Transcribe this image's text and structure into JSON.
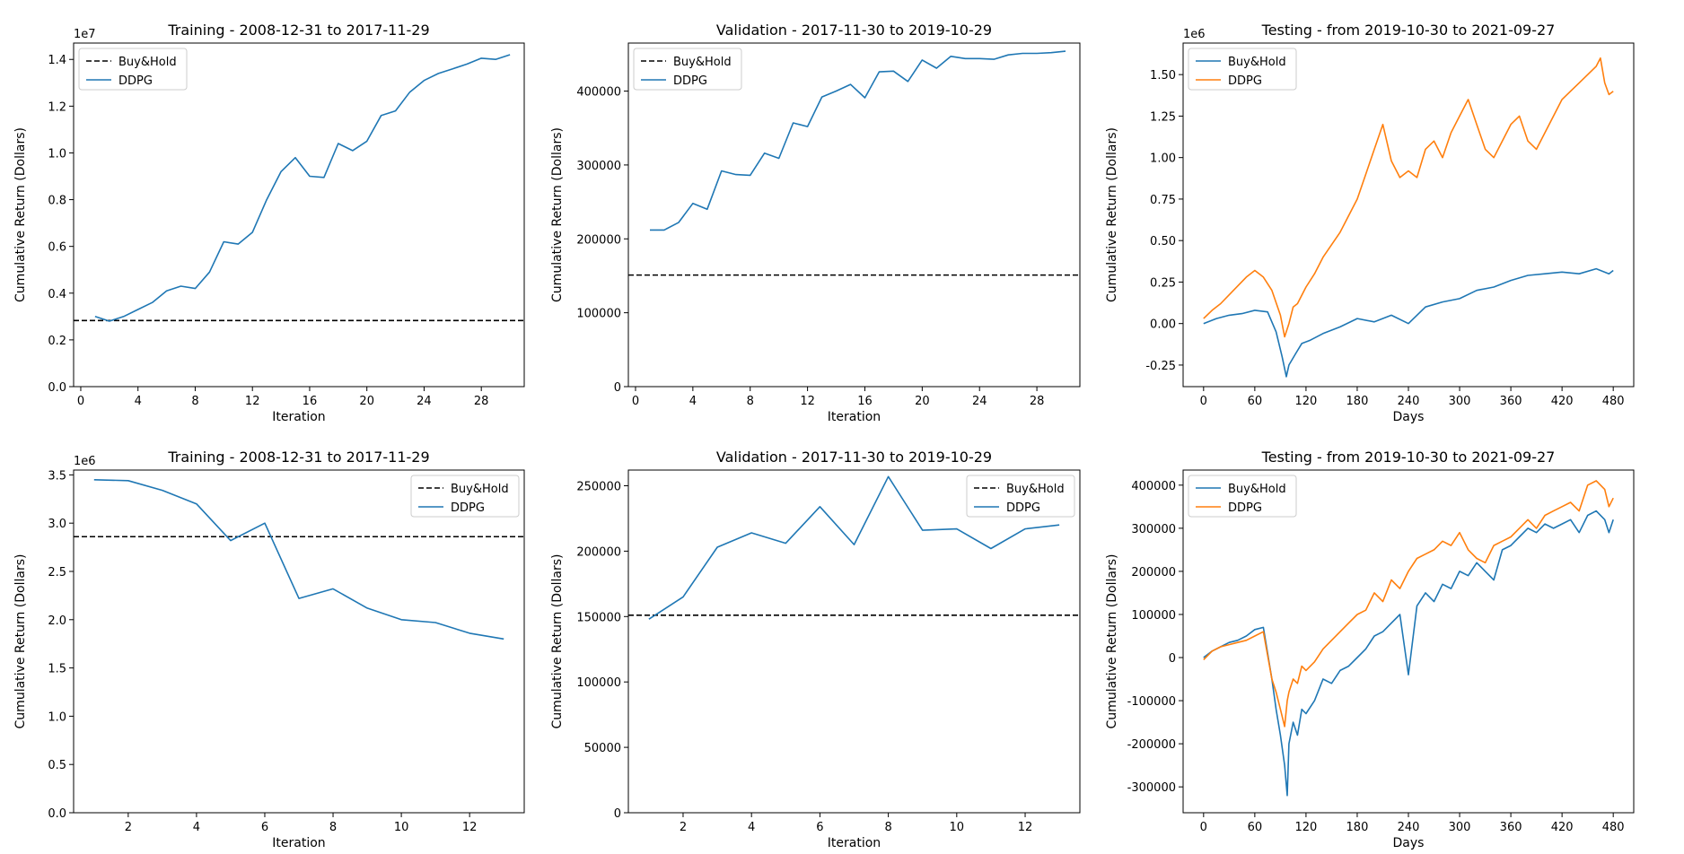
{
  "chart_data": [
    {
      "type": "line",
      "title": "Training - 2008-12-31 to 2017-11-29",
      "xlabel": "Iteration",
      "ylabel": "Cumulative Return (Dollars)",
      "y_offset_label": "1e7",
      "xlim": [
        -0.5,
        31
      ],
      "ylim": [
        0,
        1.47
      ],
      "xticks": [
        0,
        4,
        8,
        12,
        16,
        20,
        24,
        28
      ],
      "yticks": [
        0.0,
        0.2,
        0.4,
        0.6,
        0.8,
        1.0,
        1.2,
        1.4
      ],
      "ytick_decimals": 1,
      "legend_position": "upper left",
      "legend": [
        {
          "label": "Buy&Hold",
          "style": "dashed",
          "color": "#000000"
        },
        {
          "label": "DDPG",
          "style": "solid",
          "color": "#1f77b4"
        }
      ],
      "hlines": [
        {
          "series": "Buy&Hold",
          "y": 0.283,
          "color": "#000000"
        }
      ],
      "series": [
        {
          "name": "DDPG",
          "color": "#1f77b4",
          "x": [
            1,
            2,
            3,
            4,
            5,
            6,
            7,
            8,
            9,
            10,
            11,
            12,
            13,
            14,
            15,
            16,
            17,
            18,
            19,
            20,
            21,
            22,
            23,
            24,
            25,
            26,
            27,
            28,
            29,
            30
          ],
          "y": [
            0.3,
            0.28,
            0.3,
            0.33,
            0.36,
            0.41,
            0.43,
            0.42,
            0.49,
            0.62,
            0.61,
            0.66,
            0.8,
            0.92,
            0.98,
            0.9,
            0.895,
            1.04,
            1.01,
            1.05,
            1.16,
            1.18,
            1.26,
            1.31,
            1.34,
            1.36,
            1.38,
            1.405,
            1.4,
            1.42
          ]
        }
      ]
    },
    {
      "type": "line",
      "title": "Validation - 2017-11-30 to 2019-10-29",
      "xlabel": "Iteration",
      "ylabel": "Cumulative Return (Dollars)",
      "y_offset_label": "",
      "xlim": [
        -0.5,
        31
      ],
      "ylim": [
        0,
        465000
      ],
      "xticks": [
        0,
        4,
        8,
        12,
        16,
        20,
        24,
        28
      ],
      "yticks": [
        0,
        100000,
        200000,
        300000,
        400000
      ],
      "ytick_decimals": 0,
      "legend_position": "upper left",
      "legend": [
        {
          "label": "Buy&Hold",
          "style": "dashed",
          "color": "#000000"
        },
        {
          "label": "DDPG",
          "style": "solid",
          "color": "#1f77b4"
        }
      ],
      "hlines": [
        {
          "series": "Buy&Hold",
          "y": 151000,
          "color": "#000000"
        }
      ],
      "series": [
        {
          "name": "DDPG",
          "color": "#1f77b4",
          "x": [
            1,
            2,
            3,
            4,
            5,
            6,
            7,
            8,
            9,
            10,
            11,
            12,
            13,
            14,
            15,
            16,
            17,
            18,
            19,
            20,
            21,
            22,
            23,
            24,
            25,
            26,
            27,
            28,
            29,
            30
          ],
          "y": [
            212000,
            212000,
            222000,
            248000,
            240000,
            292000,
            287000,
            286000,
            316000,
            309000,
            357000,
            352000,
            392000,
            400000,
            409000,
            391000,
            426000,
            427000,
            413000,
            442000,
            431000,
            447000,
            444000,
            444000,
            443000,
            449000,
            451000,
            451000,
            452000,
            454000
          ]
        }
      ]
    },
    {
      "type": "line",
      "title": "Testing - from 2019-10-30 to 2021-09-27",
      "xlabel": "Days",
      "ylabel": "Cumulative Return (Dollars)",
      "y_offset_label": "1e6",
      "xlim": [
        -24,
        504
      ],
      "ylim": [
        -0.38,
        1.69
      ],
      "xticks": [
        0,
        60,
        120,
        180,
        240,
        300,
        360,
        420,
        480
      ],
      "yticks": [
        -0.25,
        0.0,
        0.25,
        0.5,
        0.75,
        1.0,
        1.25,
        1.5
      ],
      "ytick_decimals": 2,
      "legend_position": "upper left",
      "legend": [
        {
          "label": "Buy&Hold",
          "style": "solid",
          "color": "#1f77b4"
        },
        {
          "label": "DDPG",
          "style": "solid",
          "color": "#ff7f0e"
        }
      ],
      "hlines": [],
      "series": [
        {
          "name": "Buy&Hold",
          "color": "#1f77b4",
          "x": [
            0,
            15,
            30,
            45,
            60,
            75,
            85,
            92,
            97,
            100,
            108,
            115,
            125,
            140,
            160,
            180,
            200,
            220,
            240,
            250,
            260,
            280,
            300,
            320,
            340,
            360,
            380,
            400,
            420,
            440,
            460,
            475,
            480
          ],
          "y": [
            0.0,
            0.03,
            0.05,
            0.06,
            0.08,
            0.07,
            -0.05,
            -0.2,
            -0.32,
            -0.25,
            -0.18,
            -0.12,
            -0.1,
            -0.06,
            -0.02,
            0.03,
            0.01,
            0.05,
            0.0,
            0.05,
            0.1,
            0.13,
            0.15,
            0.2,
            0.22,
            0.26,
            0.29,
            0.3,
            0.31,
            0.3,
            0.33,
            0.3,
            0.32
          ]
        },
        {
          "name": "DDPG",
          "color": "#ff7f0e",
          "x": [
            0,
            10,
            20,
            35,
            50,
            60,
            70,
            80,
            90,
            95,
            100,
            105,
            110,
            120,
            130,
            140,
            160,
            180,
            190,
            200,
            210,
            220,
            230,
            240,
            250,
            260,
            270,
            280,
            290,
            300,
            310,
            320,
            330,
            340,
            350,
            360,
            370,
            380,
            390,
            400,
            410,
            420,
            430,
            440,
            450,
            460,
            465,
            470,
            475,
            480
          ],
          "y": [
            0.03,
            0.08,
            0.12,
            0.2,
            0.28,
            0.32,
            0.28,
            0.2,
            0.05,
            -0.08,
            0.0,
            0.1,
            0.12,
            0.22,
            0.3,
            0.4,
            0.55,
            0.75,
            0.9,
            1.05,
            1.2,
            0.98,
            0.88,
            0.92,
            0.88,
            1.05,
            1.1,
            1.0,
            1.15,
            1.25,
            1.35,
            1.2,
            1.05,
            1.0,
            1.1,
            1.2,
            1.25,
            1.1,
            1.05,
            1.15,
            1.25,
            1.35,
            1.4,
            1.45,
            1.5,
            1.55,
            1.6,
            1.45,
            1.38,
            1.4
          ]
        }
      ]
    },
    {
      "type": "line",
      "title": "Training - 2008-12-31 to 2017-11-29",
      "xlabel": "Iteration",
      "ylabel": "Cumulative Return (Dollars)",
      "y_offset_label": "1e6",
      "xlim": [
        0.4,
        13.6
      ],
      "ylim": [
        0,
        3.55
      ],
      "xticks": [
        2,
        4,
        6,
        8,
        10,
        12
      ],
      "yticks": [
        0.0,
        0.5,
        1.0,
        1.5,
        2.0,
        2.5,
        3.0,
        3.5
      ],
      "ytick_decimals": 1,
      "legend_position": "upper right",
      "legend": [
        {
          "label": "Buy&Hold",
          "style": "dashed",
          "color": "#000000"
        },
        {
          "label": "DDPG",
          "style": "solid",
          "color": "#1f77b4"
        }
      ],
      "hlines": [
        {
          "series": "Buy&Hold",
          "y": 2.86,
          "color": "#000000"
        }
      ],
      "series": [
        {
          "name": "DDPG",
          "color": "#1f77b4",
          "x": [
            1,
            2,
            3,
            4,
            5,
            6,
            7,
            8,
            9,
            10,
            11,
            12,
            13
          ],
          "y": [
            3.45,
            3.44,
            3.34,
            3.2,
            2.82,
            3.0,
            2.22,
            2.32,
            2.12,
            2.0,
            1.97,
            1.86,
            1.8
          ]
        }
      ]
    },
    {
      "type": "line",
      "title": "Validation - 2017-11-30 to 2019-10-29",
      "xlabel": "Iteration",
      "ylabel": "Cumulative Return (Dollars)",
      "y_offset_label": "",
      "xlim": [
        0.4,
        13.6
      ],
      "ylim": [
        0,
        262000
      ],
      "xticks": [
        2,
        4,
        6,
        8,
        10,
        12
      ],
      "yticks": [
        0,
        50000,
        100000,
        150000,
        200000,
        250000
      ],
      "ytick_decimals": 0,
      "legend_position": "upper right",
      "legend": [
        {
          "label": "Buy&Hold",
          "style": "dashed",
          "color": "#000000"
        },
        {
          "label": "DDPG",
          "style": "solid",
          "color": "#1f77b4"
        }
      ],
      "hlines": [
        {
          "series": "Buy&Hold",
          "y": 151000,
          "color": "#000000"
        }
      ],
      "series": [
        {
          "name": "DDPG",
          "color": "#1f77b4",
          "x": [
            1,
            2,
            3,
            4,
            5,
            6,
            7,
            8,
            9,
            10,
            11,
            12,
            13
          ],
          "y": [
            148000,
            165000,
            203000,
            214000,
            206000,
            234000,
            205000,
            257000,
            216000,
            217000,
            202000,
            217000,
            220000
          ]
        }
      ]
    },
    {
      "type": "line",
      "title": "Testing - from 2019-10-30 to 2021-09-27",
      "xlabel": "Days",
      "ylabel": "Cumulative Return (Dollars)",
      "y_offset_label": "",
      "xlim": [
        -24,
        504
      ],
      "ylim": [
        -360000,
        435000
      ],
      "xticks": [
        0,
        60,
        120,
        180,
        240,
        300,
        360,
        420,
        480
      ],
      "yticks": [
        -300000,
        -200000,
        -100000,
        0,
        100000,
        200000,
        300000,
        400000
      ],
      "ytick_decimals": 0,
      "legend_position": "upper left",
      "legend": [
        {
          "label": "Buy&Hold",
          "style": "solid",
          "color": "#1f77b4"
        },
        {
          "label": "DDPG",
          "style": "solid",
          "color": "#ff7f0e"
        }
      ],
      "hlines": [],
      "series": [
        {
          "name": "Buy&Hold",
          "color": "#1f77b4",
          "x": [
            0,
            10,
            20,
            30,
            40,
            50,
            60,
            70,
            80,
            85,
            90,
            95,
            98,
            100,
            105,
            110,
            115,
            120,
            130,
            140,
            150,
            160,
            170,
            180,
            190,
            200,
            210,
            220,
            230,
            240,
            250,
            260,
            270,
            280,
            290,
            300,
            310,
            320,
            330,
            340,
            350,
            360,
            370,
            380,
            390,
            400,
            410,
            420,
            430,
            440,
            450,
            460,
            470,
            475,
            480
          ],
          "y": [
            0,
            15000,
            25000,
            35000,
            40000,
            50000,
            65000,
            70000,
            -50000,
            -120000,
            -180000,
            -250000,
            -320000,
            -200000,
            -150000,
            -180000,
            -120000,
            -130000,
            -100000,
            -50000,
            -60000,
            -30000,
            -20000,
            0,
            20000,
            50000,
            60000,
            80000,
            100000,
            -40000,
            120000,
            150000,
            130000,
            170000,
            160000,
            200000,
            190000,
            220000,
            200000,
            180000,
            250000,
            260000,
            280000,
            300000,
            290000,
            310000,
            300000,
            310000,
            320000,
            290000,
            330000,
            340000,
            320000,
            290000,
            320000
          ]
        },
        {
          "name": "DDPG",
          "color": "#ff7f0e",
          "x": [
            0,
            10,
            20,
            30,
            40,
            50,
            60,
            70,
            80,
            85,
            90,
            95,
            98,
            100,
            105,
            110,
            115,
            120,
            130,
            140,
            150,
            160,
            170,
            180,
            190,
            200,
            210,
            220,
            230,
            240,
            250,
            260,
            270,
            280,
            290,
            300,
            310,
            320,
            330,
            340,
            350,
            360,
            370,
            380,
            390,
            400,
            410,
            420,
            430,
            440,
            450,
            460,
            470,
            475,
            480
          ],
          "y": [
            -5000,
            15000,
            25000,
            30000,
            35000,
            40000,
            50000,
            60000,
            -50000,
            -80000,
            -120000,
            -160000,
            -100000,
            -80000,
            -50000,
            -60000,
            -20000,
            -30000,
            -10000,
            20000,
            40000,
            60000,
            80000,
            100000,
            110000,
            150000,
            130000,
            180000,
            160000,
            200000,
            230000,
            240000,
            250000,
            270000,
            260000,
            290000,
            250000,
            230000,
            220000,
            260000,
            270000,
            280000,
            300000,
            320000,
            300000,
            330000,
            340000,
            350000,
            360000,
            340000,
            400000,
            410000,
            390000,
            350000,
            370000
          ]
        }
      ]
    }
  ]
}
